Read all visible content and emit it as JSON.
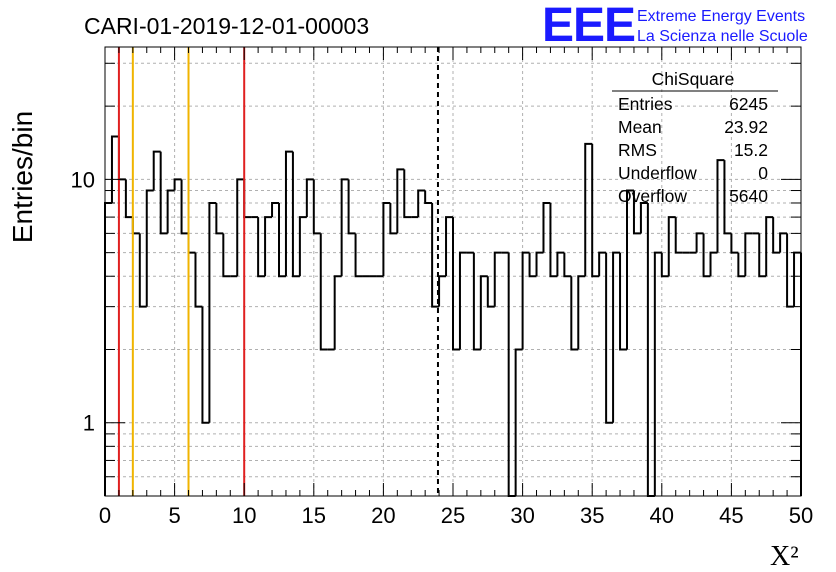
{
  "logo": {
    "mark": "EEE",
    "line1": "Extreme Energy Events",
    "line2": "La Scienza nelle Scuole",
    "color": "#1a1aff"
  },
  "stats_box": {
    "title": "ChiSquare",
    "rows": [
      {
        "label": "Entries",
        "value": "6245"
      },
      {
        "label": "Mean",
        "value": "23.92"
      },
      {
        "label": "RMS",
        "value": "15.2"
      },
      {
        "label": "Underflow",
        "value": "0"
      },
      {
        "label": "Overflow",
        "value": "5640"
      }
    ]
  },
  "chart_data": {
    "type": "histogram-step",
    "title": "CARI-01-2019-12-01-00003",
    "xlabel": "X²",
    "ylabel": "Entries/bin",
    "xlim": [
      0,
      50
    ],
    "ylim": [
      0.5,
      35
    ],
    "yscale": "log",
    "bin_width": 0.5,
    "grid": true,
    "x_ticks": [
      0,
      5,
      10,
      15,
      20,
      25,
      30,
      35,
      40,
      45,
      50
    ],
    "y_tick_labels": [
      {
        "value": 1,
        "label": "1"
      },
      {
        "value": 10,
        "label": "10"
      }
    ],
    "counts": [
      8,
      15,
      10,
      7,
      6,
      3,
      9,
      13,
      6,
      9,
      10,
      6,
      5,
      3,
      1,
      8,
      6,
      4,
      4,
      10,
      7,
      7,
      4,
      7,
      8,
      4,
      13,
      4,
      7,
      10,
      6,
      2,
      2,
      4,
      10,
      6,
      4,
      4,
      4,
      4,
      8,
      6,
      11,
      7,
      7,
      9,
      8,
      3,
      4,
      7,
      2,
      5,
      5,
      2,
      4,
      3,
      5,
      5,
      0.4,
      2,
      5,
      4,
      5,
      8,
      4,
      5,
      4,
      2,
      4,
      14,
      4,
      5,
      1,
      5,
      2,
      9,
      6,
      8,
      0,
      5,
      4,
      7,
      5,
      5,
      5,
      6,
      4,
      5,
      12,
      6,
      5,
      4,
      6,
      6,
      4,
      7,
      5,
      6,
      3,
      5
    ],
    "vertical_lines": [
      {
        "x": 1,
        "color": "#e02020",
        "style": "solid"
      },
      {
        "x": 2,
        "color": "#f0b400",
        "style": "solid"
      },
      {
        "x": 6,
        "color": "#f0b400",
        "style": "solid"
      },
      {
        "x": 10,
        "color": "#e02020",
        "style": "solid"
      },
      {
        "x": 23.92,
        "color": "#000000",
        "style": "dashed"
      }
    ]
  }
}
